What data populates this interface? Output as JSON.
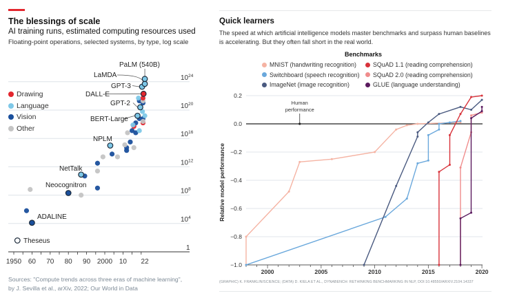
{
  "left": {
    "title": "The blessings of scale",
    "subtitle": "AI training runs, estimated computing resources used",
    "subsubtitle": "Floating-point operations, selected systems, by type, log scale",
    "sources": "Sources: \"Compute trends across three eras of machine learning\", by J. Sevilla et al., arXiv, 2022; Our World in Data",
    "accent_color": "#e3262e"
  },
  "right": {
    "title": "Quick learners",
    "description_line1": "The speed at which artificial intelligence models master benchmarks and surpass human baselines",
    "description_line2": "is accelerating. But they often fall short in the real world.",
    "credit": "(GRAPHIC) K. FRANKLIN/SCIENCE; (DATA) D. KIELA ET AL., DYNABENCH: RETHINKING BENCHMARKING IN NLP, DOI:10.48550/ARXIV.2104.14337"
  },
  "chart_data": [
    {
      "type": "scatter",
      "yscale": "log",
      "x_tick_labels": [
        "1950",
        "60",
        "70",
        "80",
        "90",
        "2000",
        "10",
        "22"
      ],
      "x_ticks": [
        1950,
        1960,
        1970,
        1980,
        1990,
        2000,
        2010,
        2022
      ],
      "y_tick_labels": [
        "1",
        "10",
        "10",
        "10",
        "10",
        "10",
        "10"
      ],
      "y_tick_exponents": [
        "",
        "4",
        "8",
        "12",
        "16",
        "20",
        "24"
      ],
      "y_ticks_log10": [
        0,
        4,
        8,
        12,
        16,
        20,
        24
      ],
      "xlim": [
        1948,
        2024
      ],
      "grid": true,
      "legend_placement": "left",
      "legend": [
        {
          "key": "drawing",
          "label": "Drawing",
          "color": "#e3262e"
        },
        {
          "key": "language",
          "label": "Language",
          "color": "#7ec8e8"
        },
        {
          "key": "vision",
          "label": "Vision",
          "color": "#1a4f9c"
        },
        {
          "key": "other",
          "label": "Other",
          "color": "#c4c4c4"
        }
      ],
      "points": [
        {
          "year": 1952,
          "log10_flop": 1.6,
          "type": "other",
          "label": "Theseus"
        },
        {
          "year": 1957,
          "log10_flop": 5.8,
          "type": "vision"
        },
        {
          "year": 1960,
          "log10_flop": 4.1,
          "type": "vision",
          "label": "ADALINE"
        },
        {
          "year": 1959,
          "log10_flop": 8.8,
          "type": "other"
        },
        {
          "year": 1980,
          "log10_flop": 8.3,
          "type": "vision",
          "label": "Neocognitron"
        },
        {
          "year": 1987,
          "log10_flop": 8.0,
          "type": "other"
        },
        {
          "year": 1996,
          "log10_flop": 9.0,
          "type": "vision"
        },
        {
          "year": 1987,
          "log10_flop": 10.9,
          "type": "language",
          "label": "NetTalk"
        },
        {
          "year": 1989,
          "log10_flop": 10.7,
          "type": "vision"
        },
        {
          "year": 1996,
          "log10_flop": 11.4,
          "type": "other"
        },
        {
          "year": 1996,
          "log10_flop": 12.5,
          "type": "vision"
        },
        {
          "year": 1999,
          "log10_flop": 13.4,
          "type": "other"
        },
        {
          "year": 2004,
          "log10_flop": 13.8,
          "type": "vision"
        },
        {
          "year": 2007,
          "log10_flop": 13.4,
          "type": "other"
        },
        {
          "year": 2003,
          "log10_flop": 15.0,
          "type": "language",
          "label": "NPLM"
        },
        {
          "year": 2012,
          "log10_flop": 14.3,
          "type": "vision"
        },
        {
          "year": 2012,
          "log10_flop": 14.7,
          "type": "vision"
        },
        {
          "year": 2011,
          "log10_flop": 15.1,
          "type": "other"
        },
        {
          "year": 2014,
          "log10_flop": 15.5,
          "type": "vision"
        },
        {
          "year": 2016,
          "log10_flop": 14.7,
          "type": "other"
        },
        {
          "year": 2012.5,
          "log10_flop": 16.8,
          "type": "other"
        },
        {
          "year": 2015,
          "log10_flop": 17.1,
          "type": "vision"
        },
        {
          "year": 2017,
          "log10_flop": 16.8,
          "type": "vision"
        },
        {
          "year": 2019,
          "log10_flop": 17.1,
          "type": "language"
        },
        {
          "year": 2016,
          "log10_flop": 17.7,
          "type": "drawing"
        },
        {
          "year": 2017,
          "log10_flop": 18.2,
          "type": "vision"
        },
        {
          "year": 2015.5,
          "log10_flop": 17.9,
          "type": "language"
        },
        {
          "year": 2018,
          "log10_flop": 19.2,
          "type": "language",
          "label": "BERT-Large"
        },
        {
          "year": 2019,
          "log10_flop": 18.8,
          "type": "vision"
        },
        {
          "year": 2021,
          "log10_flop": 18.8,
          "type": "vision"
        },
        {
          "year": 2022,
          "log10_flop": 19.2,
          "type": "language"
        },
        {
          "year": 2021,
          "log10_flop": 18.2,
          "type": "drawing"
        },
        {
          "year": 2021,
          "log10_flop": 18.4,
          "type": "other"
        },
        {
          "year": 2020.7,
          "log10_flop": 19.8,
          "type": "language"
        },
        {
          "year": 2019.5,
          "log10_flop": 20.4,
          "type": "language",
          "label": "GPT-2"
        },
        {
          "year": 2019,
          "log10_flop": 21.3,
          "type": "vision"
        },
        {
          "year": 2018.5,
          "log10_flop": 21.7,
          "type": "language"
        },
        {
          "year": 2021,
          "log10_flop": 21.0,
          "type": "vision"
        },
        {
          "year": 2021,
          "log10_flop": 21.3,
          "type": "other"
        },
        {
          "year": 2021,
          "log10_flop": 21.7,
          "type": "drawing"
        },
        {
          "year": 2021.3,
          "log10_flop": 22.3,
          "type": "drawing",
          "label": "DALL-E"
        },
        {
          "year": 2020.5,
          "log10_flop": 23.3,
          "type": "language",
          "label": "GPT-3"
        },
        {
          "year": 2022,
          "log10_flop": 23.7,
          "type": "language",
          "label": "LaMDA"
        },
        {
          "year": 2022,
          "log10_flop": 24.4,
          "type": "language",
          "label": "PaLM (540B)"
        }
      ]
    },
    {
      "type": "line",
      "ylabel": "Relative model performance",
      "xlim": [
        1998,
        2020
      ],
      "ylim": [
        -1.0,
        0.2
      ],
      "x_ticks": [
        2000,
        2005,
        2010,
        2015,
        2020
      ],
      "x_tick_labels": [
        "2000",
        "2005",
        "2010",
        "2015",
        "2020"
      ],
      "y_ticks": [
        0.2,
        0.0,
        -0.2,
        -0.4,
        -0.6,
        -0.8,
        -1.0
      ],
      "y_tick_labels": [
        "0.2",
        "0.0",
        "−0.2",
        "−0.4",
        "−0.6",
        "−0.8",
        "−1.0"
      ],
      "grid": true,
      "legend_title": "Benchmarks",
      "legend_placement": "top",
      "annotation": {
        "text_line1": "Human",
        "text_line2": "performance",
        "x": 2003,
        "y": 0.0
      },
      "series": [
        {
          "name": "MNIST (handwriting recognition)",
          "color": "#f5b3a3",
          "points": [
            [
              1998,
              -1.0
            ],
            [
              1998,
              -0.8
            ],
            [
              2002,
              -0.48
            ],
            [
              2003,
              -0.27
            ],
            [
              2006,
              -0.25
            ],
            [
              2010,
              -0.2
            ],
            [
              2012,
              -0.04
            ],
            [
              2013,
              -0.01
            ],
            [
              2014,
              0.0
            ],
            [
              2018,
              0.01
            ]
          ]
        },
        {
          "name": "Switchboard (speech recognition)",
          "color": "#6aa8dc",
          "points": [
            [
              1998,
              -1.0
            ],
            [
              2011,
              -0.66
            ],
            [
              2013,
              -0.53
            ],
            [
              2014,
              -0.28
            ],
            [
              2015,
              -0.26
            ],
            [
              2015,
              -0.08
            ],
            [
              2016,
              -0.04
            ],
            [
              2016,
              0.0
            ],
            [
              2017,
              0.01
            ],
            [
              2018,
              0.02
            ]
          ]
        },
        {
          "name": "ImageNet (image recognition)",
          "color": "#4a5a80",
          "points": [
            [
              2009,
              -1.0
            ],
            [
              2012,
              -0.44
            ],
            [
              2014,
              -0.09
            ],
            [
              2014,
              -0.06
            ],
            [
              2015,
              0.01
            ],
            [
              2016,
              0.07
            ],
            [
              2018,
              0.12
            ],
            [
              2019,
              0.1
            ],
            [
              2020,
              0.17
            ]
          ]
        },
        {
          "name": "SQuAD 1.1 (reading comprehension)",
          "color": "#d8323a",
          "points": [
            [
              2016,
              -1.0
            ],
            [
              2016,
              -0.34
            ],
            [
              2017,
              -0.29
            ],
            [
              2017,
              -0.08
            ],
            [
              2018,
              0.07
            ],
            [
              2019,
              0.19
            ],
            [
              2020,
              0.2
            ]
          ]
        },
        {
          "name": "SQuAD 2.0 (reading comprehension)",
          "color": "#f08c8c",
          "points": [
            [
              2018,
              -1.0
            ],
            [
              2018,
              -0.31
            ],
            [
              2019,
              -0.06
            ],
            [
              2019,
              0.06
            ],
            [
              2020,
              0.08
            ]
          ]
        },
        {
          "name": "GLUE (language understanding)",
          "color": "#5a1a5e",
          "points": [
            [
              2018,
              -1.0
            ],
            [
              2018,
              -0.67
            ],
            [
              2019,
              -0.63
            ],
            [
              2019,
              0.04
            ],
            [
              2020,
              0.09
            ],
            [
              2020,
              0.12
            ]
          ]
        }
      ]
    }
  ]
}
